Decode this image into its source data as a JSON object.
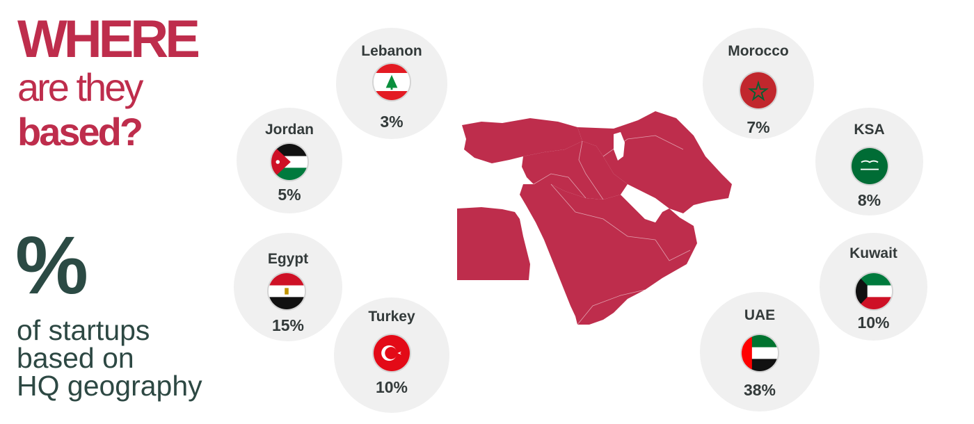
{
  "heading": {
    "line1": "WHERE",
    "line2": "are they",
    "line3": "based?"
  },
  "legend": {
    "symbol": "%",
    "line1": "of startups",
    "line2": "based on",
    "line3": "HQ geography"
  },
  "countries": [
    {
      "name": "Lebanon",
      "value": "3%",
      "flag": "lebanon-flag-icon"
    },
    {
      "name": "Jordan",
      "value": "5%",
      "flag": "jordan-flag-icon"
    },
    {
      "name": "Egypt",
      "value": "15%",
      "flag": "egypt-flag-icon"
    },
    {
      "name": "Turkey",
      "value": "10%",
      "flag": "turkey-flag-icon"
    },
    {
      "name": "Morocco",
      "value": "7%",
      "flag": "morocco-flag-icon"
    },
    {
      "name": "KSA",
      "value": "8%",
      "flag": "ksa-flag-icon"
    },
    {
      "name": "Kuwait",
      "value": "10%",
      "flag": "kuwait-flag-icon"
    },
    {
      "name": "UAE",
      "value": "38%",
      "flag": "uae-flag-icon"
    }
  ],
  "colors": {
    "accent": "#be2d4c",
    "dark_text": "#2b4a44",
    "bubble": "#f0f0f0"
  }
}
